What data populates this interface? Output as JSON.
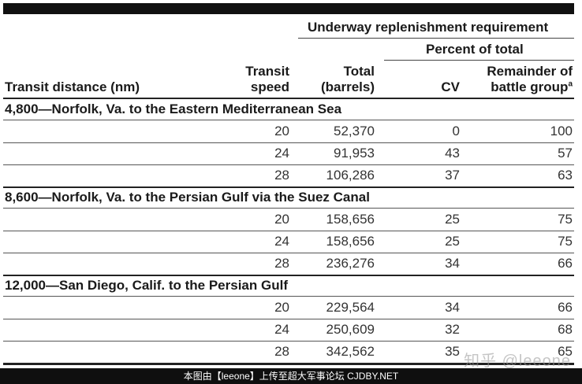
{
  "header": {
    "span_title": "Underway replenishment requirement",
    "percent_title": "Percent of total",
    "col_distance": "Transit distance (nm)",
    "col_speed_1": "Transit",
    "col_speed_2": "speed",
    "col_total_1": "Total",
    "col_total_2": "(barrels)",
    "col_cv": "CV",
    "col_rem_1": "Remainder of",
    "col_rem_2": "battle group",
    "col_rem_sup": "a"
  },
  "groups": [
    {
      "title": "4,800—Norfolk, Va. to the Eastern Mediterranean Sea",
      "rows": [
        {
          "speed": "20",
          "total": "52,370",
          "cv": "0",
          "rem": "100"
        },
        {
          "speed": "24",
          "total": "91,953",
          "cv": "43",
          "rem": "57"
        },
        {
          "speed": "28",
          "total": "106,286",
          "cv": "37",
          "rem": "63"
        }
      ]
    },
    {
      "title": "8,600—Norfolk, Va. to the Persian Gulf via the Suez Canal",
      "rows": [
        {
          "speed": "20",
          "total": "158,656",
          "cv": "25",
          "rem": "75"
        },
        {
          "speed": "24",
          "total": "158,656",
          "cv": "25",
          "rem": "75"
        },
        {
          "speed": "28",
          "total": "236,276",
          "cv": "34",
          "rem": "66"
        }
      ]
    },
    {
      "title": "12,000—San Diego, Calif. to the Persian Gulf",
      "rows": [
        {
          "speed": "20",
          "total": "229,564",
          "cv": "34",
          "rem": "66"
        },
        {
          "speed": "24",
          "total": "250,609",
          "cv": "32",
          "rem": "68"
        },
        {
          "speed": "28",
          "total": "342,562",
          "cv": "35",
          "rem": "65"
        }
      ]
    }
  ],
  "footer": "本图由【leeone】上传至超大军事论坛 CJDBY.NET",
  "watermark": "知乎 @leeone"
}
